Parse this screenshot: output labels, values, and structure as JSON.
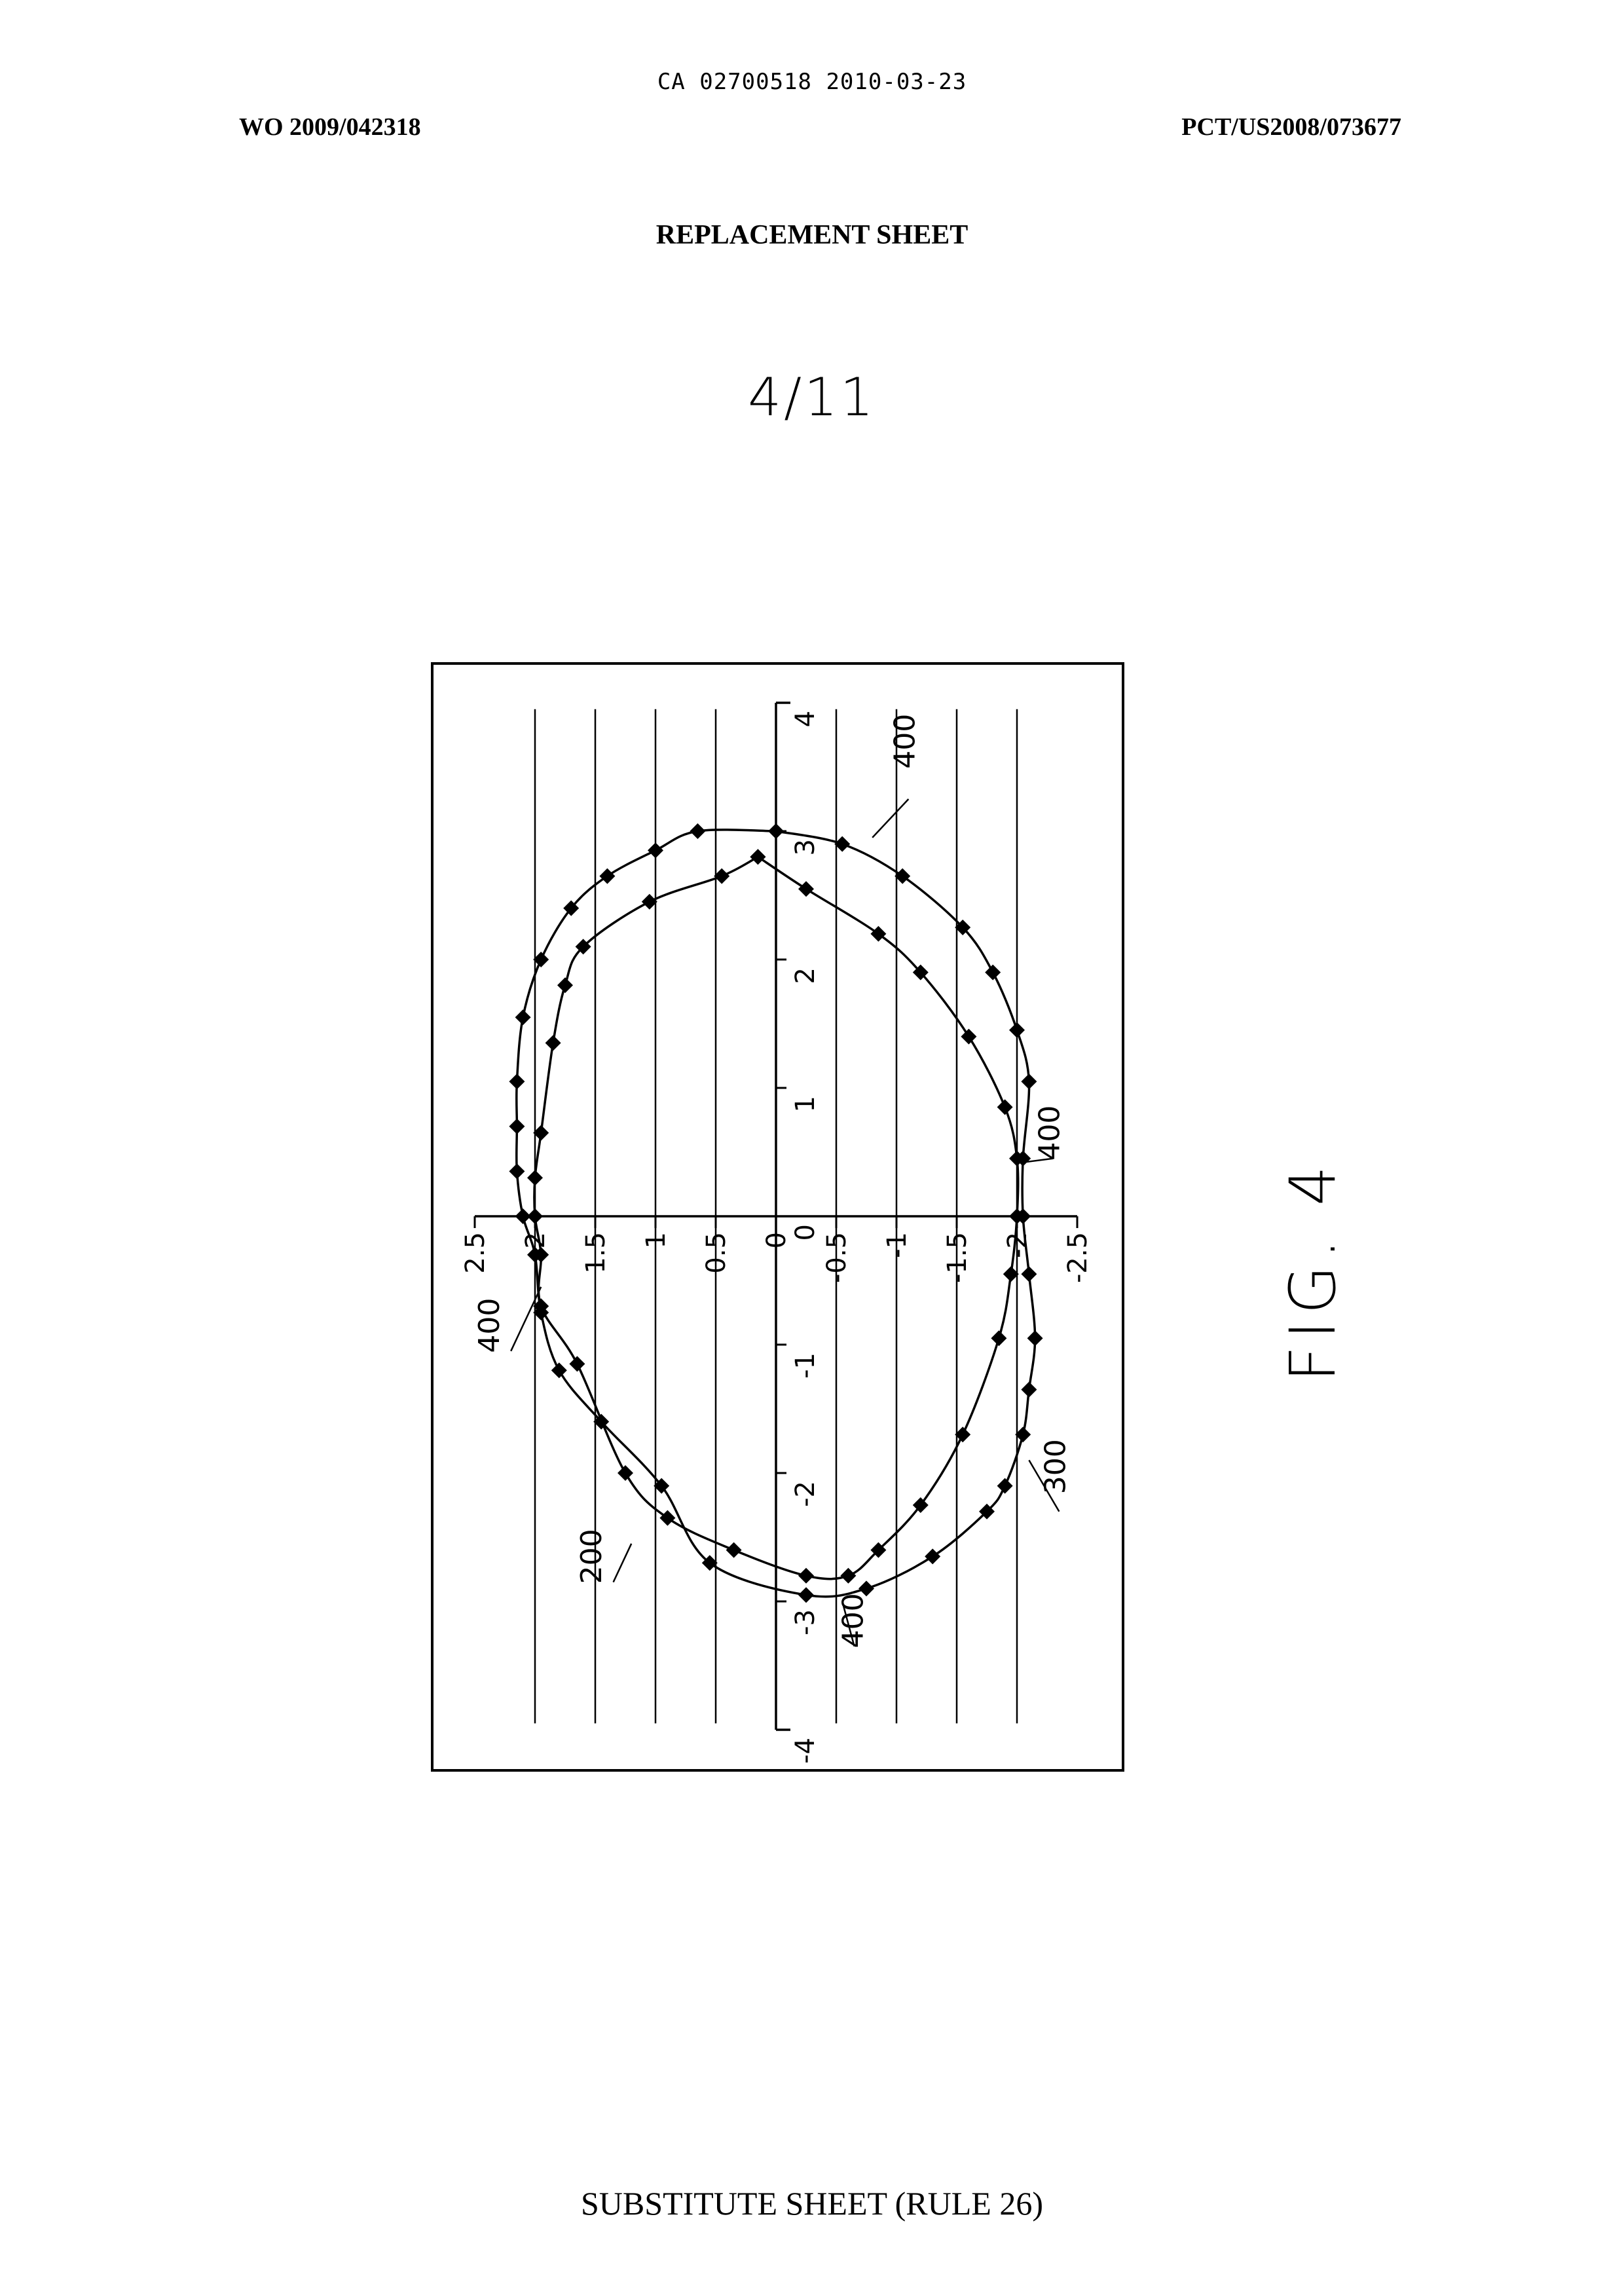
{
  "header": {
    "ca_line": "CA 02700518 2010-03-23",
    "wo_number": "WO 2009/042318",
    "pct_number": "PCT/US2008/073677",
    "replacement": "REPLACEMENT SHEET",
    "sheet_number": "4/11"
  },
  "figure": {
    "caption": "FIG. 4",
    "orientation": "rotated 90° counter-clockwise on page",
    "reference_labels": [
      "400",
      "400",
      "400",
      "400",
      "200",
      "300"
    ]
  },
  "footer": {
    "text": "SUBSTITUTE SHEET (RULE 26)"
  },
  "chart_data": {
    "type": "scatter",
    "title": "",
    "xlabel": "",
    "ylabel": "",
    "xlim": [
      -4,
      4
    ],
    "ylim": [
      -2.5,
      2.5
    ],
    "x_ticks": [
      "-4",
      "-3",
      "-2",
      "-1",
      "0",
      "1",
      "2",
      "3",
      "4"
    ],
    "y_ticks": [
      "2.5",
      "2",
      "1.5",
      "1",
      "0.5",
      "0",
      "-0.5",
      "-1",
      "-1.5",
      "-2",
      "-2.5"
    ],
    "grid": "horizontal gridlines",
    "legend": "none",
    "series": [
      {
        "name": "200",
        "marker": "diamond",
        "points": [
          [
            3.0,
            0.0
          ],
          [
            2.9,
            -0.55
          ],
          [
            2.65,
            -1.05
          ],
          [
            2.25,
            -1.55
          ],
          [
            1.9,
            -1.8
          ],
          [
            1.45,
            -2.0
          ],
          [
            1.05,
            -2.1
          ],
          [
            0.45,
            -2.05
          ],
          [
            0.0,
            -2.05
          ],
          [
            -0.45,
            -2.1
          ],
          [
            -0.95,
            -2.15
          ],
          [
            -1.35,
            -2.1
          ],
          [
            -1.7,
            -2.05
          ],
          [
            -2.1,
            -1.9
          ],
          [
            -2.3,
            -1.75
          ],
          [
            -2.65,
            -1.3
          ],
          [
            -2.9,
            -0.75
          ],
          [
            -2.95,
            -0.25
          ],
          [
            -2.7,
            0.55
          ],
          [
            -2.1,
            0.95
          ],
          [
            -1.6,
            1.45
          ],
          [
            -1.2,
            1.8
          ],
          [
            -0.75,
            1.95
          ],
          [
            -0.3,
            2.0
          ],
          [
            0.0,
            2.1
          ],
          [
            0.35,
            2.15
          ],
          [
            0.7,
            2.15
          ],
          [
            1.05,
            2.15
          ],
          [
            1.55,
            2.1
          ],
          [
            2.0,
            1.95
          ],
          [
            2.4,
            1.7
          ],
          [
            2.65,
            1.4
          ],
          [
            2.85,
            1.0
          ],
          [
            3.0,
            0.65
          ]
        ]
      },
      {
        "name": "300",
        "marker": "diamond",
        "points": [
          [
            2.8,
            0.15
          ],
          [
            2.55,
            -0.25
          ],
          [
            2.2,
            -0.85
          ],
          [
            1.9,
            -1.2
          ],
          [
            1.4,
            -1.6
          ],
          [
            0.85,
            -1.9
          ],
          [
            0.45,
            -2.0
          ],
          [
            0.0,
            -2.0
          ],
          [
            -0.45,
            -1.95
          ],
          [
            -0.95,
            -1.85
          ],
          [
            -1.7,
            -1.55
          ],
          [
            -2.25,
            -1.2
          ],
          [
            -2.6,
            -0.85
          ],
          [
            -2.8,
            -0.6
          ],
          [
            -2.8,
            -0.25
          ],
          [
            -2.6,
            0.35
          ],
          [
            -2.35,
            0.9
          ],
          [
            -2.0,
            1.25
          ],
          [
            -1.15,
            1.65
          ],
          [
            -0.7,
            1.95
          ],
          [
            -0.3,
            1.95
          ],
          [
            0.0,
            2.0
          ],
          [
            0.3,
            2.0
          ],
          [
            0.65,
            1.95
          ],
          [
            1.35,
            1.85
          ],
          [
            1.8,
            1.75
          ],
          [
            2.1,
            1.6
          ],
          [
            2.45,
            1.05
          ],
          [
            2.65,
            0.45
          ],
          [
            2.8,
            0.15
          ]
        ]
      }
    ]
  }
}
